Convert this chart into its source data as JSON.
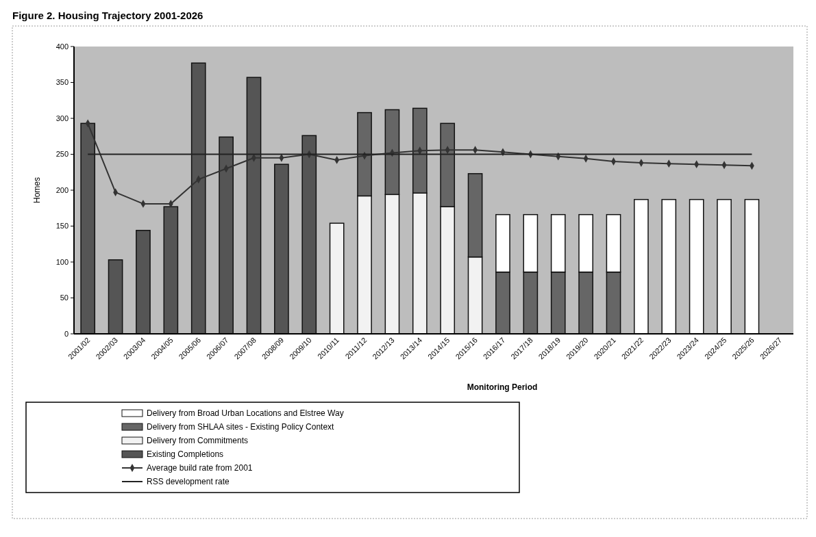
{
  "chart_data": {
    "type": "bar",
    "stacked": true,
    "title": "Figure 2. Housing Trajectory 2001-2026",
    "xlabel": "Monitoring Period",
    "ylabel": "Homes",
    "categories": [
      "2001/02",
      "2002/03",
      "2003/04",
      "2004/05",
      "2005/06",
      "2006/07",
      "2007/08",
      "2008/09",
      "2009/10",
      "2010/11",
      "2011/12",
      "2012/13",
      "2013/14",
      "2014/15",
      "2015/16",
      "2016/17",
      "2017/18",
      "2018/19",
      "2019/20",
      "2020/21",
      "2021/22",
      "2022/23",
      "2023/24",
      "2024/25",
      "2025/26",
      "2026/27"
    ],
    "series": [
      {
        "name": "Existing Completions",
        "color": "#555555",
        "values": [
          293,
          103,
          144,
          177,
          377,
          274,
          357,
          236,
          276,
          null,
          null,
          null,
          null,
          null,
          null,
          null,
          null,
          null,
          null,
          null,
          null,
          null,
          null,
          null,
          null,
          null
        ]
      },
      {
        "name": "Delivery from Commitments",
        "color": "#f2f2f2",
        "values": [
          null,
          null,
          null,
          null,
          null,
          null,
          null,
          null,
          null,
          154,
          192,
          194,
          196,
          177,
          107,
          null,
          null,
          null,
          null,
          null,
          null,
          null,
          null,
          null,
          null,
          null
        ]
      },
      {
        "name": "Delivery from SHLAA sites - Existing Policy Context",
        "color": "#666666",
        "values": [
          null,
          null,
          null,
          null,
          null,
          null,
          null,
          null,
          null,
          null,
          116,
          118,
          118,
          116,
          116,
          86,
          86,
          86,
          86,
          86,
          null,
          null,
          null,
          null,
          null,
          null
        ]
      },
      {
        "name": "Delivery from Broad Urban Locations and Elstree Way",
        "color": "#ffffff",
        "values": [
          null,
          null,
          null,
          null,
          null,
          null,
          null,
          null,
          null,
          null,
          null,
          null,
          null,
          null,
          null,
          80,
          80,
          80,
          80,
          80,
          187,
          187,
          187,
          187,
          187,
          null
        ]
      },
      {
        "name": "Average build rate from 2001",
        "type": "line",
        "color": "#333333",
        "marker": "diamond",
        "values": [
          293,
          197,
          181,
          181,
          215,
          230,
          245,
          245,
          250,
          242,
          248,
          252,
          255,
          256,
          256,
          253,
          250,
          247,
          244,
          240,
          238,
          237,
          236,
          235,
          234,
          null
        ]
      },
      {
        "name": "RSS development rate",
        "type": "line",
        "color": "#222222",
        "marker": "none",
        "values": [
          250,
          250,
          250,
          250,
          250,
          250,
          250,
          250,
          250,
          250,
          250,
          250,
          250,
          250,
          250,
          250,
          250,
          250,
          250,
          250,
          250,
          250,
          250,
          250,
          250,
          null
        ]
      }
    ],
    "ylim": [
      0,
      400
    ],
    "yticks": [
      0,
      50,
      100,
      150,
      200,
      250,
      300,
      350,
      400
    ],
    "legend": "bottom"
  }
}
